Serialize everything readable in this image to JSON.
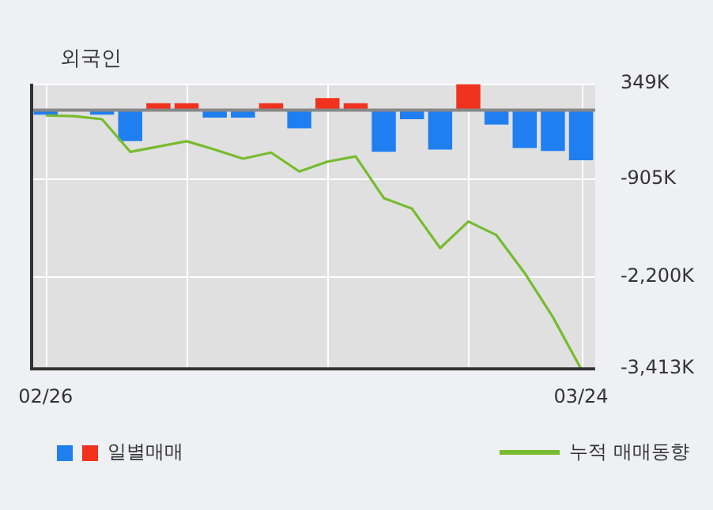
{
  "chart_data": {
    "type": "bar",
    "title": "외국인",
    "categories": [
      "02/26",
      null,
      null,
      null,
      null,
      null,
      null,
      null,
      null,
      null,
      null,
      null,
      null,
      null,
      null,
      null,
      null,
      null,
      null,
      "03/24"
    ],
    "series": [
      {
        "name": "일별매매",
        "colors": [
          "#1f7ff0",
          "#1f7ff0",
          "#1f7ff0",
          "#1f7ff0",
          "#f0321e",
          "#f0321e",
          "#1f7ff0",
          "#1f7ff0",
          "#f0321e",
          "#1f7ff0",
          "#f0321e",
          "#f0321e",
          "#1f7ff0",
          "#1f7ff0",
          "#1f7ff0",
          "#f0321e",
          "#1f7ff0",
          "#1f7ff0",
          "#1f7ff0",
          "#1f7ff0"
        ],
        "values": [
          -60,
          null,
          -60,
          -410,
          90,
          90,
          -100,
          -100,
          90,
          -240,
          160,
          90,
          -550,
          -120,
          -520,
          340,
          -190,
          -500,
          -540,
          -660
        ]
      },
      {
        "name": "누적 매매동향",
        "type": "line",
        "color": "#76bc2e",
        "values": [
          -70,
          -80,
          -120,
          -550,
          -480,
          -410,
          -520,
          -640,
          -560,
          -810,
          -680,
          -610,
          -1160,
          -1300,
          -1820,
          -1470,
          -1650,
          -2150,
          -2730,
          -3413
        ]
      }
    ],
    "ylim": [
      -3413,
      349
    ],
    "yticks": [
      {
        "value": 349,
        "label": "349K"
      },
      {
        "value": -905,
        "label": "-905K"
      },
      {
        "value": -2200,
        "label": "-2,200K"
      },
      {
        "value": -3413,
        "label": "-3,413K"
      }
    ],
    "grid": true,
    "legend": "bottom"
  }
}
